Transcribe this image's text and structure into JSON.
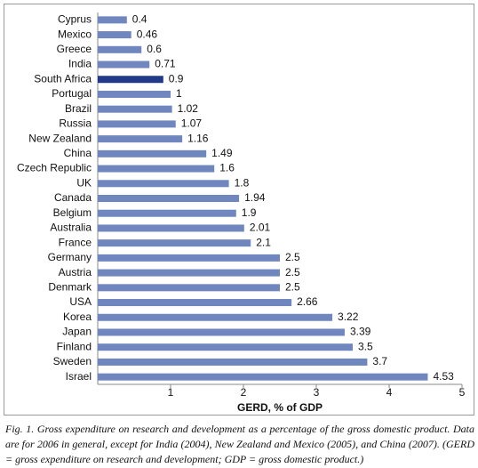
{
  "chart_data": {
    "type": "bar",
    "orientation": "horizontal",
    "categories": [
      "Cyprus",
      "Mexico",
      "Greece",
      "India",
      "South Africa",
      "Portugal",
      "Brazil",
      "Russia",
      "New Zealand",
      "China",
      "Czech Republic",
      "UK",
      "Canada",
      "Belgium",
      "Australia",
      "France",
      "Germany",
      "Austria",
      "Denmark",
      "USA",
      "Korea",
      "Japan",
      "Finland",
      "Sweden",
      "Israel"
    ],
    "values": [
      0.4,
      0.46,
      0.6,
      0.71,
      0.9,
      1,
      1.02,
      1.07,
      1.16,
      1.49,
      1.6,
      1.8,
      1.94,
      1.9,
      2.01,
      2.1,
      2.5,
      2.5,
      2.5,
      2.66,
      3.22,
      3.39,
      3.5,
      3.7,
      4.53
    ],
    "colors": [
      "#6f86bf",
      "#6f86bf",
      "#6f86bf",
      "#6f86bf",
      "#22398a",
      "#6f86bf",
      "#6f86bf",
      "#6f86bf",
      "#6f86bf",
      "#6f86bf",
      "#6f86bf",
      "#6f86bf",
      "#6f86bf",
      "#6f86bf",
      "#6f86bf",
      "#6f86bf",
      "#6f86bf",
      "#6f86bf",
      "#6f86bf",
      "#6f86bf",
      "#6f86bf",
      "#6f86bf",
      "#6f86bf",
      "#6f86bf",
      "#6f86bf"
    ],
    "x_label": "GERD, % of GDP",
    "xlim": [
      0,
      5
    ],
    "xticks": [
      1,
      2,
      3,
      4,
      5
    ],
    "caption": "Fig. 1. Gross expenditure on research and development as a percentage of the gross domestic product. Data are for 2006 in general, except for India (2004), New Zealand and Mexico (2005), and China (2007). (GERD = gross expenditure on research and development; GDP = gross domestic product.)"
  }
}
